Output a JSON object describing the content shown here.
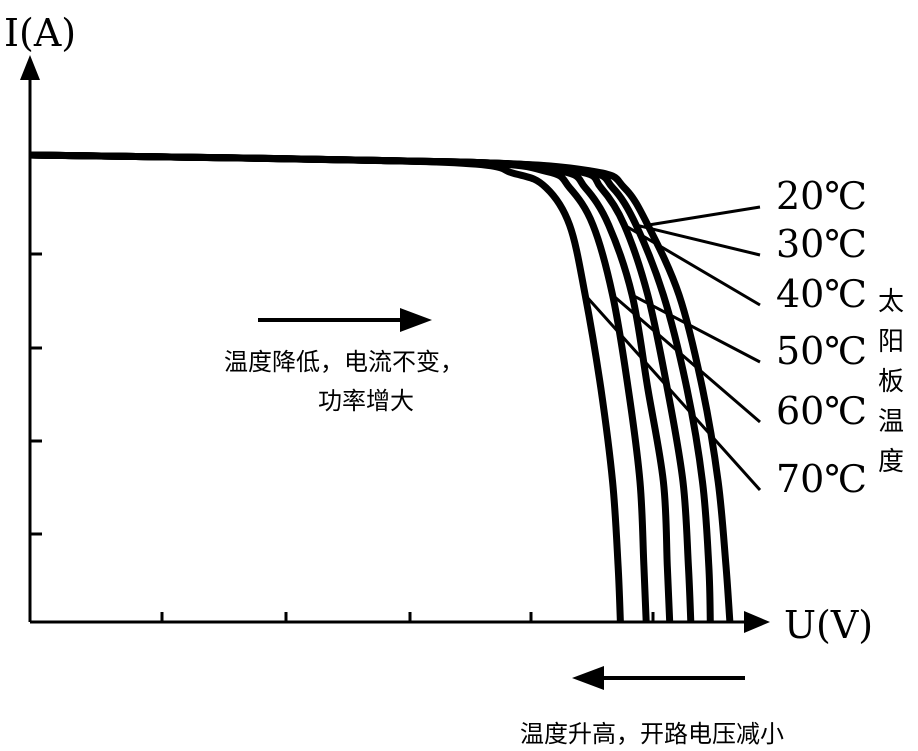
{
  "chart_data": {
    "type": "line",
    "title": "",
    "xlabel": "U(V)",
    "ylabel": "I(A)",
    "legend_title": "太阳板温度",
    "x_ticks_labeled": false,
    "y_ticks_labeled": false,
    "series": [
      {
        "name": "20℃",
        "points": [
          [
            0,
            1.0
          ],
          [
            0.55,
            0.985
          ],
          [
            0.72,
            0.965
          ],
          [
            0.76,
            0.93
          ],
          [
            0.79,
            0.85
          ],
          [
            0.83,
            0.7
          ],
          [
            0.86,
            0.5
          ],
          [
            0.88,
            0.3
          ],
          [
            0.89,
            0.12
          ],
          [
            0.895,
            0.0
          ]
        ]
      },
      {
        "name": "30℃",
        "points": [
          [
            0,
            1.0
          ],
          [
            0.55,
            0.985
          ],
          [
            0.71,
            0.965
          ],
          [
            0.745,
            0.93
          ],
          [
            0.775,
            0.85
          ],
          [
            0.81,
            0.7
          ],
          [
            0.84,
            0.5
          ],
          [
            0.86,
            0.3
          ],
          [
            0.868,
            0.12
          ],
          [
            0.87,
            0.0
          ]
        ]
      },
      {
        "name": "40℃",
        "points": [
          [
            0,
            1.0
          ],
          [
            0.55,
            0.985
          ],
          [
            0.7,
            0.965
          ],
          [
            0.73,
            0.93
          ],
          [
            0.76,
            0.85
          ],
          [
            0.79,
            0.7
          ],
          [
            0.815,
            0.5
          ],
          [
            0.835,
            0.3
          ],
          [
            0.842,
            0.12
          ],
          [
            0.845,
            0.0
          ]
        ]
      },
      {
        "name": "50℃",
        "points": [
          [
            0,
            1.0
          ],
          [
            0.55,
            0.985
          ],
          [
            0.68,
            0.965
          ],
          [
            0.71,
            0.93
          ],
          [
            0.74,
            0.85
          ],
          [
            0.77,
            0.7
          ],
          [
            0.79,
            0.5
          ],
          [
            0.81,
            0.3
          ],
          [
            0.815,
            0.12
          ],
          [
            0.818,
            0.0
          ]
        ]
      },
      {
        "name": "60℃",
        "points": [
          [
            0,
            1.0
          ],
          [
            0.54,
            0.985
          ],
          [
            0.66,
            0.965
          ],
          [
            0.69,
            0.93
          ],
          [
            0.72,
            0.85
          ],
          [
            0.745,
            0.7
          ],
          [
            0.765,
            0.5
          ],
          [
            0.78,
            0.3
          ],
          [
            0.785,
            0.12
          ],
          [
            0.788,
            0.0
          ]
        ]
      },
      {
        "name": "70℃",
        "points": [
          [
            0,
            1.0
          ],
          [
            0.52,
            0.985
          ],
          [
            0.62,
            0.96
          ],
          [
            0.66,
            0.93
          ],
          [
            0.69,
            0.85
          ],
          [
            0.71,
            0.7
          ],
          [
            0.73,
            0.5
          ],
          [
            0.745,
            0.3
          ],
          [
            0.752,
            0.12
          ],
          [
            0.755,
            0.0
          ]
        ]
      }
    ],
    "annotations": [
      "温度降低，电流不变，",
      "功率增大",
      "温度升高，开路电压减小"
    ],
    "xlim": [
      0,
      1
    ],
    "ylim": [
      0,
      1
    ],
    "grid": false
  }
}
